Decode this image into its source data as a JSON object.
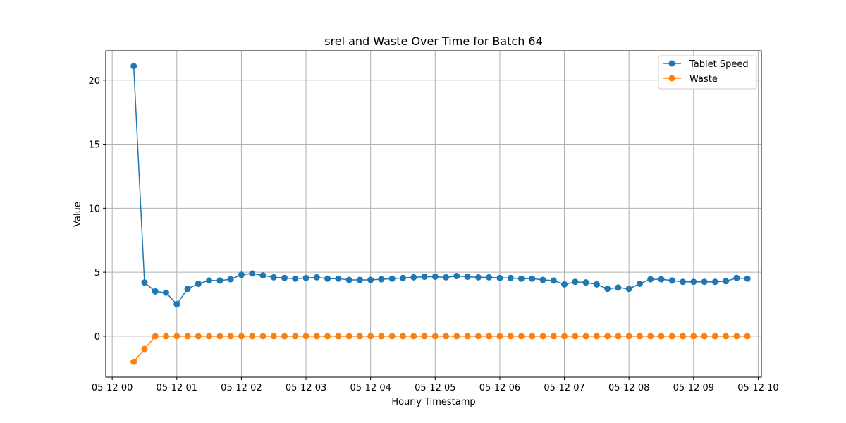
{
  "chart_data": {
    "type": "line",
    "title": "srel and Waste Over Time for Batch 64",
    "xlabel": "Hourly Timestamp",
    "ylabel": "Value",
    "xlim_hours": [
      -0.1,
      10.05
    ],
    "ylim": [
      -3.2,
      22.3
    ],
    "x_ticks": [
      {
        "hour": 0,
        "label": "05-12 00"
      },
      {
        "hour": 1,
        "label": "05-12 01"
      },
      {
        "hour": 2,
        "label": "05-12 02"
      },
      {
        "hour": 3,
        "label": "05-12 03"
      },
      {
        "hour": 4,
        "label": "05-12 04"
      },
      {
        "hour": 5,
        "label": "05-12 05"
      },
      {
        "hour": 6,
        "label": "05-12 06"
      },
      {
        "hour": 7,
        "label": "05-12 07"
      },
      {
        "hour": 8,
        "label": "05-12 08"
      },
      {
        "hour": 9,
        "label": "05-12 09"
      },
      {
        "hour": 10,
        "label": "05-12 10"
      }
    ],
    "y_ticks": [
      0,
      5,
      10,
      15,
      20
    ],
    "grid": true,
    "legend_position": "top-right",
    "x_hours": [
      0.333,
      0.5,
      0.667,
      0.833,
      1.0,
      1.167,
      1.333,
      1.5,
      1.667,
      1.833,
      2.0,
      2.167,
      2.333,
      2.5,
      2.667,
      2.833,
      3.0,
      3.167,
      3.333,
      3.5,
      3.667,
      3.833,
      4.0,
      4.167,
      4.333,
      4.5,
      4.667,
      4.833,
      5.0,
      5.167,
      5.333,
      5.5,
      5.667,
      5.833,
      6.0,
      6.167,
      6.333,
      6.5,
      6.667,
      6.833,
      7.0,
      7.167,
      7.333,
      7.5,
      7.667,
      7.833,
      8.0,
      8.167,
      8.333,
      8.5,
      8.667,
      8.833,
      9.0,
      9.167,
      9.333,
      9.5,
      9.667,
      9.833
    ],
    "series": [
      {
        "name": "Tablet Speed",
        "color": "#1f77b4",
        "values": [
          21.1,
          4.2,
          3.5,
          3.4,
          2.5,
          3.7,
          4.1,
          4.35,
          4.35,
          4.45,
          4.8,
          4.9,
          4.75,
          4.6,
          4.55,
          4.5,
          4.55,
          4.6,
          4.5,
          4.5,
          4.4,
          4.4,
          4.4,
          4.45,
          4.5,
          4.55,
          4.6,
          4.65,
          4.65,
          4.6,
          4.7,
          4.65,
          4.6,
          4.6,
          4.55,
          4.55,
          4.5,
          4.5,
          4.4,
          4.35,
          4.05,
          4.25,
          4.2,
          4.05,
          3.7,
          3.8,
          3.7,
          4.1,
          4.45,
          4.45,
          4.35,
          4.25,
          4.25,
          4.25,
          4.25,
          4.3,
          4.55,
          4.5
        ]
      },
      {
        "name": "Waste",
        "color": "#ff7f0e",
        "values": [
          -2.0,
          -1.0,
          0,
          0,
          0,
          0,
          0,
          0,
          0,
          0,
          0,
          0,
          0,
          0,
          0,
          0,
          0,
          0,
          0,
          0,
          0,
          0,
          0,
          0,
          0,
          0,
          0,
          0,
          0,
          0,
          0,
          0,
          0,
          0,
          0,
          0,
          0,
          0,
          0,
          0,
          0,
          0,
          0,
          0,
          0,
          0,
          0,
          0,
          0,
          0,
          0,
          0,
          0,
          0,
          0,
          0,
          0,
          0
        ]
      }
    ]
  }
}
